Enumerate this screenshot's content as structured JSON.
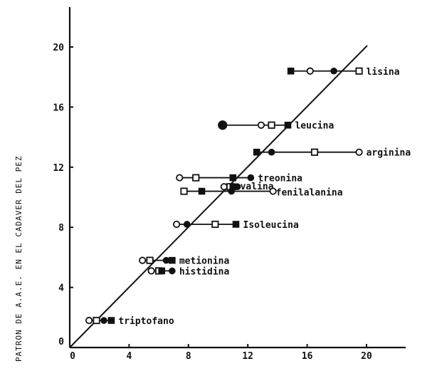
{
  "chart_data": {
    "type": "scatter",
    "title": "",
    "xlabel": "",
    "ylabel": "PATRON DE A.A.E. EN EL CADAVER DEL PEZ",
    "xlim": [
      0,
      22.5
    ],
    "ylim": [
      0,
      22
    ],
    "x_ticks": [
      0,
      4,
      8,
      12,
      16,
      20
    ],
    "x_tick_labels": [
      "0",
      "4",
      "8",
      "12",
      "16",
      "20"
    ],
    "y_ticks": [
      0,
      4,
      8,
      12,
      16,
      20
    ],
    "y_tick_labels": [
      "0",
      "4",
      "8",
      "12",
      "16",
      "20"
    ],
    "grid": false,
    "legend": null,
    "reference_line": {
      "type": "identity",
      "from": [
        0,
        0
      ],
      "to": [
        20,
        20
      ]
    },
    "marker_types": {
      "open_circle": "○",
      "open_square": "□",
      "filled_circle": "●",
      "filled_square": "■"
    },
    "series": [
      {
        "name": "lisina",
        "y": 18.4,
        "points": [
          {
            "marker": "filled_square",
            "x": 14.9
          },
          {
            "marker": "open_circle",
            "x": 16.2
          },
          {
            "marker": "filled_circle",
            "x": 17.8
          },
          {
            "marker": "open_square",
            "x": 19.5
          }
        ]
      },
      {
        "name": "leucina",
        "y": 14.8,
        "points": [
          {
            "marker": "filled_circle",
            "x": 10.3
          },
          {
            "marker": "open_circle",
            "x": 12.9
          },
          {
            "marker": "open_square",
            "x": 13.6
          },
          {
            "marker": "filled_square",
            "x": 14.7
          }
        ]
      },
      {
        "name": "arginina",
        "y": 13.0,
        "points": [
          {
            "marker": "filled_square",
            "x": 12.6
          },
          {
            "marker": "filled_circle",
            "x": 13.6
          },
          {
            "marker": "open_square",
            "x": 16.5
          },
          {
            "marker": "open_circle",
            "x": 19.5
          }
        ]
      },
      {
        "name": "treonina",
        "y": 11.3,
        "points": [
          {
            "marker": "open_circle",
            "x": 7.4
          },
          {
            "marker": "open_square",
            "x": 8.5
          },
          {
            "marker": "filled_square",
            "x": 11.0
          },
          {
            "marker": "filled_circle",
            "x": 12.2
          }
        ]
      },
      {
        "name": "valina",
        "y": 10.7,
        "points": [
          {
            "marker": "open_circle",
            "x": 10.4
          },
          {
            "marker": "open_square",
            "x": 10.8
          },
          {
            "marker": "filled_square",
            "x": 11.0
          },
          {
            "marker": "filled_circle",
            "x": 11.3
          }
        ]
      },
      {
        "name": "fenilalanina",
        "y": 10.4,
        "points": [
          {
            "marker": "open_square",
            "x": 7.7
          },
          {
            "marker": "filled_square",
            "x": 8.9
          },
          {
            "marker": "filled_circle",
            "x": 10.9
          },
          {
            "marker": "open_circle",
            "x": 13.7
          }
        ]
      },
      {
        "name": "Isoleucina",
        "y": 8.2,
        "points": [
          {
            "marker": "open_circle",
            "x": 7.2
          },
          {
            "marker": "filled_circle",
            "x": 7.9
          },
          {
            "marker": "open_square",
            "x": 9.8
          },
          {
            "marker": "filled_square",
            "x": 11.2
          }
        ]
      },
      {
        "name": "metionina",
        "y": 5.8,
        "points": [
          {
            "marker": "open_circle",
            "x": 4.9
          },
          {
            "marker": "open_square",
            "x": 5.4
          },
          {
            "marker": "filled_circle",
            "x": 6.5
          },
          {
            "marker": "filled_square",
            "x": 6.9
          }
        ]
      },
      {
        "name": "histidina",
        "y": 5.1,
        "points": [
          {
            "marker": "open_circle",
            "x": 5.5
          },
          {
            "marker": "open_square",
            "x": 6.0
          },
          {
            "marker": "filled_square",
            "x": 6.2
          },
          {
            "marker": "filled_circle",
            "x": 6.9
          }
        ]
      },
      {
        "name": "triptofano",
        "y": 1.8,
        "points": [
          {
            "marker": "open_circle",
            "x": 1.3
          },
          {
            "marker": "open_square",
            "x": 1.8
          },
          {
            "marker": "filled_circle",
            "x": 2.3
          },
          {
            "marker": "filled_square",
            "x": 2.8
          }
        ]
      }
    ]
  },
  "colors": {
    "ink": "#111111",
    "background": "#ffffff"
  }
}
